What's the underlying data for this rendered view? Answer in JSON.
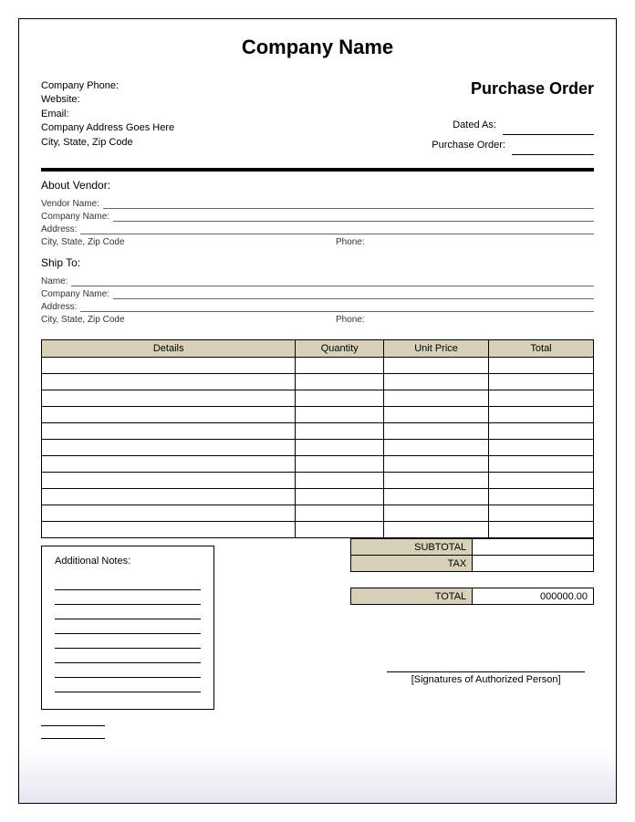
{
  "header": {
    "company_name": "Company Name",
    "po_title": "Purchase Order",
    "company_info": {
      "phone_label": "Company Phone:",
      "website_label": "Website:",
      "email_label": "Email:",
      "address_line": "Company Address Goes Here",
      "city_line": "City, State, Zip Code"
    },
    "meta": {
      "dated_label": "Dated As:",
      "po_num_label": "Purchase Order:"
    }
  },
  "vendor": {
    "section_label": "About Vendor:",
    "vendor_name_label": "Vendor Name:",
    "company_name_label": "Company Name:",
    "address_label": "Address:",
    "city_label": "City, State, Zip Code",
    "phone_label": "Phone:"
  },
  "shipto": {
    "section_label": "Ship To:",
    "name_label": "Name:",
    "company_name_label": "Company Name:",
    "address_label": "Address:",
    "city_label": "City, State, Zip Code",
    "phone_label": "Phone:"
  },
  "table": {
    "columns": [
      "Details",
      "Quantity",
      "Unit Price",
      "Total"
    ],
    "row_count": 11,
    "header_bg": "#d6d1b8",
    "border_color": "#000000"
  },
  "totals": {
    "subtotal_label": "SUBTOTAL",
    "tax_label": "TAX",
    "total_label": "TOTAL",
    "total_value": "000000.00"
  },
  "notes": {
    "title": "Additional Notes:",
    "line_count": 8
  },
  "signature": {
    "label": "[Signatures of Authorized Person]"
  },
  "style": {
    "accent_bg": "#d6d1b8",
    "page_bg": "#ffffff",
    "gradient_end": "#e8e4f0",
    "font_family": "Arial",
    "title_fontsize": 22,
    "body_fontsize": 11
  }
}
